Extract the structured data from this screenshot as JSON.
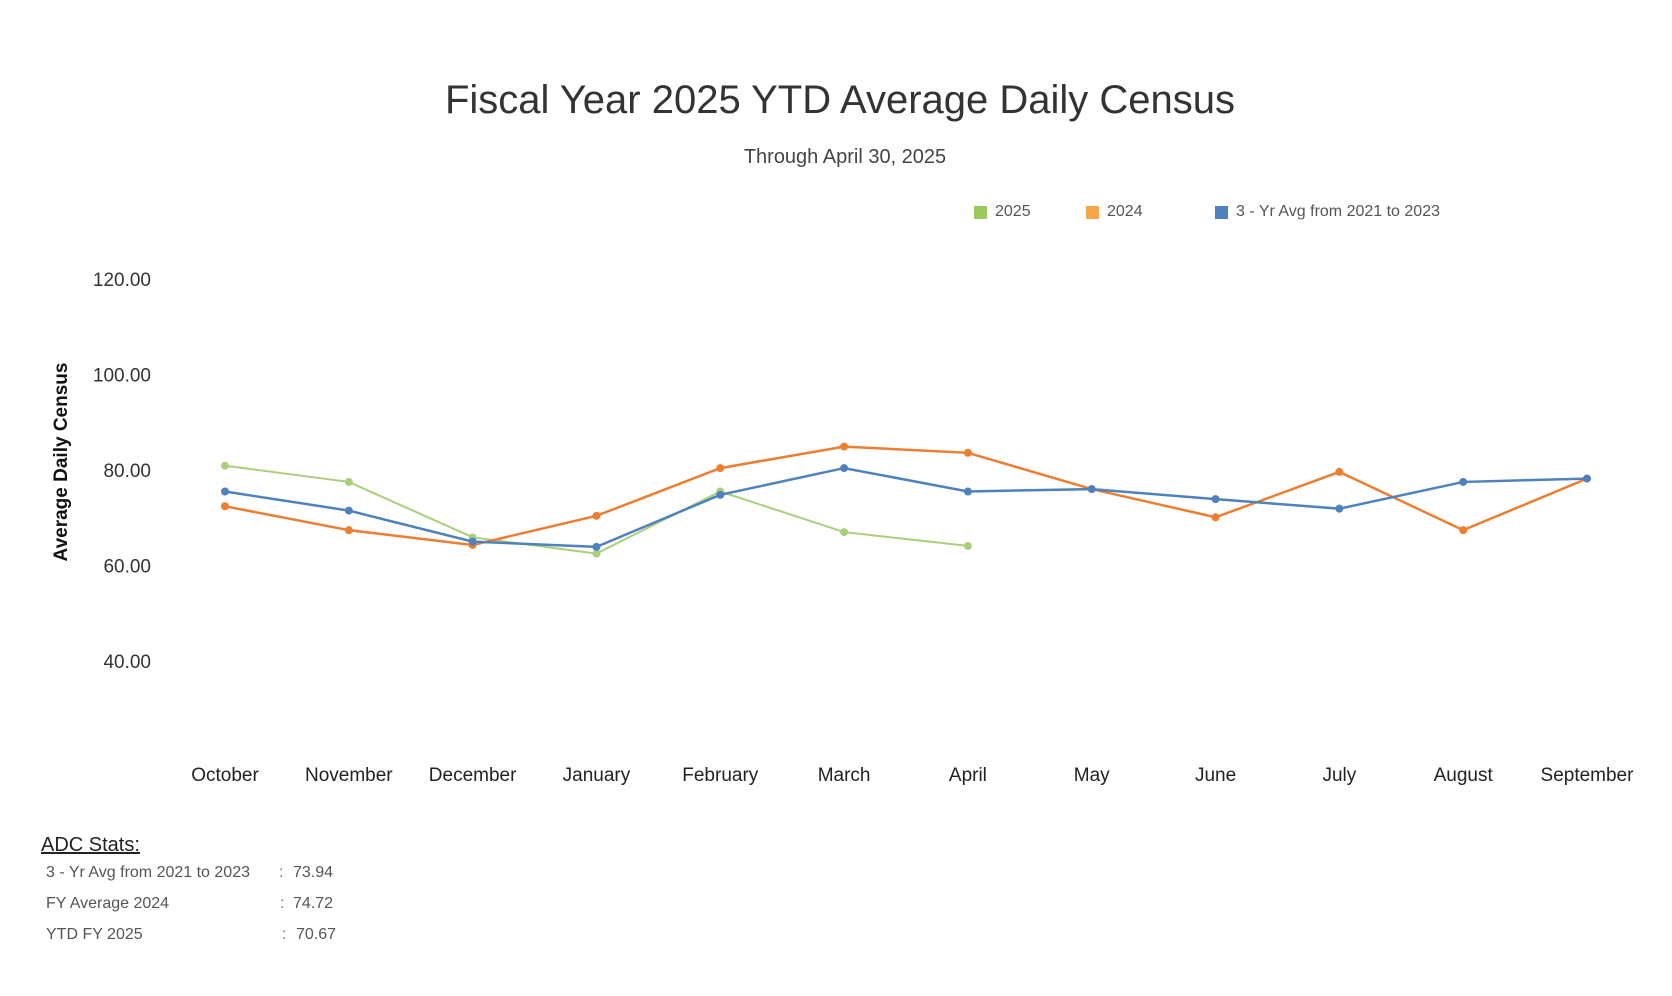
{
  "chart_data": {
    "type": "line",
    "title": "Fiscal Year 2025 YTD Average Daily Census",
    "subtitle": "Through April 30, 2025",
    "ylabel": "Average Daily Census",
    "xlabel": "",
    "ylim": [
      40,
      120
    ],
    "yticks": [
      "120.00",
      "100.00",
      "80.00",
      "60.00",
      "40.00"
    ],
    "ytick_values": [
      120,
      100,
      80,
      60,
      40
    ],
    "grid": false,
    "legend_position": "top-right",
    "categories": [
      "October",
      "November",
      "December",
      "January",
      "February",
      "March",
      "April",
      "May",
      "June",
      "July",
      "August",
      "September"
    ],
    "series": [
      {
        "name": "2025",
        "color": "#a9cf7a",
        "values": [
          80.9,
          77.5,
          65.9,
          62.5,
          75.5,
          67.0,
          64.1,
          null,
          null,
          null,
          null,
          null
        ]
      },
      {
        "name": "2024",
        "color": "#ed7d31",
        "values": [
          72.4,
          67.4,
          64.3,
          70.4,
          80.4,
          84.9,
          83.6,
          76.0,
          70.1,
          79.6,
          67.4,
          78.2
        ]
      },
      {
        "name": "3 - Yr Avg from 2021 to 2023",
        "color": "#4f81bd",
        "values": [
          75.5,
          71.5,
          65.0,
          63.9,
          74.8,
          80.4,
          75.5,
          76.0,
          73.9,
          71.9,
          77.5,
          78.2
        ]
      }
    ],
    "legend_colors": [
      "#9bc95d",
      "#f7a54a",
      "#4f81bd"
    ]
  },
  "stats": {
    "heading": "ADC Stats:",
    "separator": ":",
    "rows": [
      {
        "label": "3 - Yr Avg from 2021 to 2023",
        "value": "73.94"
      },
      {
        "label": "FY Average 2024",
        "value": "74.72"
      },
      {
        "label": "YTD FY 2025",
        "value": "70.67"
      }
    ]
  }
}
